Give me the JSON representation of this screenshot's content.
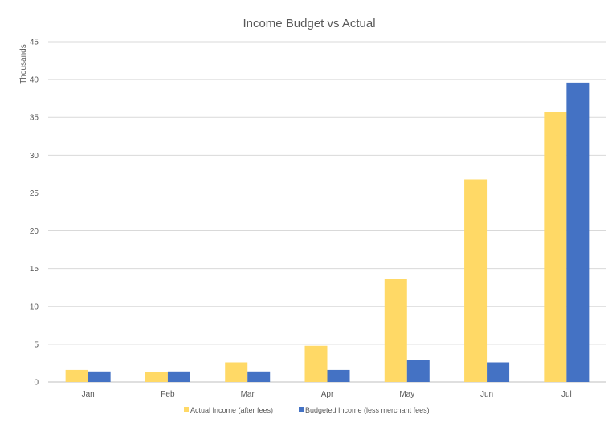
{
  "chart_data": {
    "type": "bar",
    "title": "Income Budget vs Actual",
    "xlabel": "",
    "ylabel": "Thousands",
    "ylim": [
      0,
      45
    ],
    "yticks": [
      0,
      5,
      10,
      15,
      20,
      25,
      30,
      35,
      40,
      45
    ],
    "grid": true,
    "legend_position": "bottom",
    "categories": [
      "Jan",
      "Feb",
      "Mar",
      "Apr",
      "May",
      "Jun",
      "Jul"
    ],
    "series": [
      {
        "name": "Actual Income (after fees)",
        "color": "#FFD966",
        "values": [
          1.6,
          1.3,
          2.6,
          4.8,
          13.6,
          26.8,
          35.7
        ]
      },
      {
        "name": "Budgeted Income (less merchant fees)",
        "color": "#4472C4",
        "values": [
          1.4,
          1.4,
          1.4,
          1.6,
          2.9,
          2.6,
          39.6
        ]
      }
    ]
  }
}
